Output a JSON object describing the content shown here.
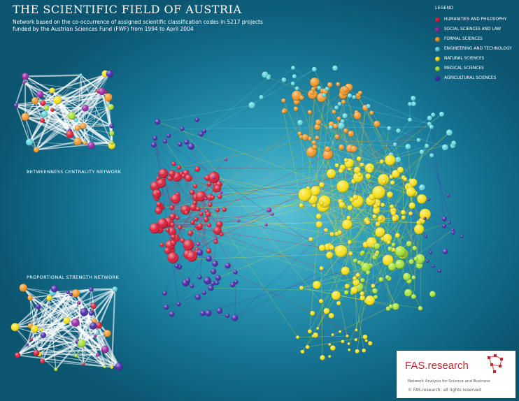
{
  "header": {
    "title": "THE SCIENTIFIC FIELD OF AUSTRIA",
    "subtitle_line1": "Network based on the co-occurrence of assigned scientific classification codes in 5217 projects",
    "subtitle_line2": "funded by the Austrian Sciences Fund (FWF) from 1994 to April 2004"
  },
  "legend": {
    "title": "LEGEND",
    "items": [
      {
        "label": "HUMANITIES AND PHILOSOPHY",
        "color": "#d8203a"
      },
      {
        "label": "SOCIAL SCIENCES AND LAW",
        "color": "#9b2aa8"
      },
      {
        "label": "FORMAL SCIENCES",
        "color": "#f39a2b"
      },
      {
        "label": "ENGINEERING AND TECHNOLOGY",
        "color": "#5fd6e0"
      },
      {
        "label": "NATURAL SCIENCES",
        "color": "#f7e11c"
      },
      {
        "label": "MEDICAL SCIENCES",
        "color": "#a6e33b"
      },
      {
        "label": "AGRICULTURAL SCIENCES",
        "color": "#4b2bb0"
      }
    ]
  },
  "networks": {
    "betweenness_label": "BETWEENNESS CENTRALITY NETWORK",
    "proportional_label": "PROPORTIONAL STRENGTH NETWORK"
  },
  "branding": {
    "name": "FAS.research",
    "tagline": "Network Analysis for Science and Business",
    "copyright": "© FAS.research; all rights reserved"
  }
}
